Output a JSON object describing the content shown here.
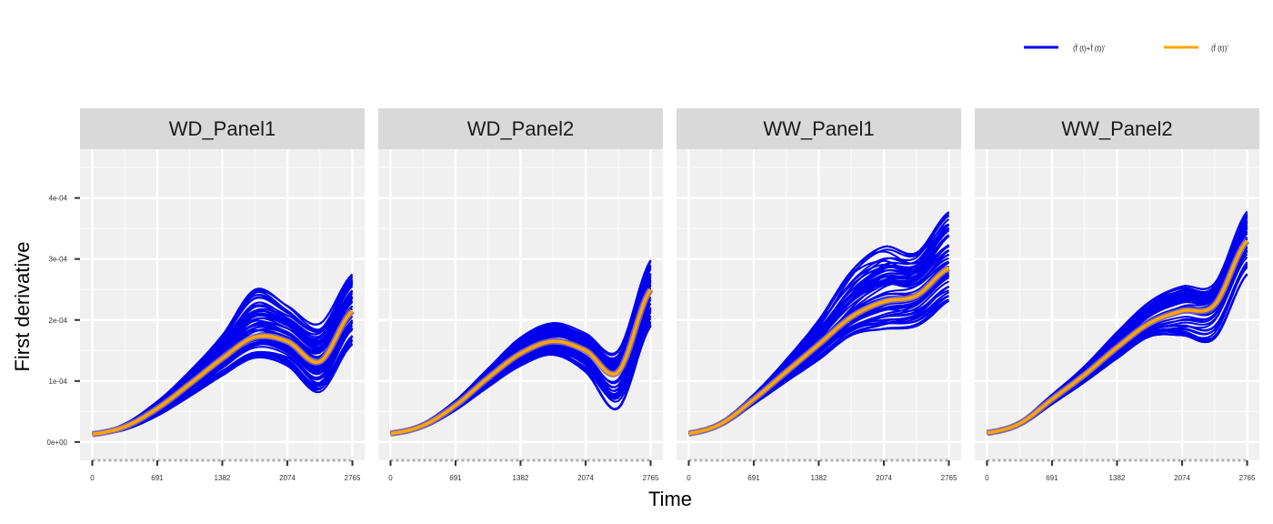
{
  "chart_data": {
    "type": "line",
    "xlabel": "Time",
    "ylabel": "First derivative",
    "x_ticks": [
      0,
      691,
      1382,
      2074,
      2765
    ],
    "x_tick_labels": [
      "0",
      "691",
      "1382",
      "2074",
      "2765"
    ],
    "y_ticks": [
      0,
      0.0001,
      0.0002,
      0.0003,
      0.0004
    ],
    "y_tick_labels": [
      "0e+00",
      "1e-04",
      "2e-04",
      "3e-04",
      "4e-04"
    ],
    "xlim": [
      -130,
      2895
    ],
    "ylim": [
      -3e-05,
      0.00048
    ],
    "grid": true,
    "legend_position": "top-right",
    "legend": [
      {
        "label": "(f̂  (t)+f̂  (t))'",
        "color": "#0000ee"
      },
      {
        "label": "(f̂  (t))'",
        "color": "#ffa500"
      }
    ],
    "colors": {
      "individual": "#0000ee",
      "mean": "#ffa500",
      "mean_outline": "#8b6fa8",
      "panel_bg": "#f0f0f0",
      "strip_bg": "#d9d9d9"
    },
    "panels": [
      {
        "name": "WD_Panel1",
        "mean": {
          "x": [
            0,
            345,
            691,
            1036,
            1382,
            1730,
            2074,
            2420,
            2765
          ],
          "y": [
            1.3e-05,
            2.5e-05,
            5.5e-05,
            9.5e-05,
            0.000137,
            0.000172,
            0.000165,
            0.000132,
            0.000215
          ]
        },
        "spread_low": [
          2e-06,
          5e-06,
          1.2e-05,
          2e-05,
          2.8e-05,
          3.4e-05,
          4e-05,
          5e-05,
          5.5e-05
        ],
        "spread_high": [
          2e-06,
          5e-06,
          1.2e-05,
          2.2e-05,
          3.8e-05,
          7.8e-05,
          5.8e-05,
          6.2e-05,
          6e-05
        ]
      },
      {
        "name": "WD_Panel2",
        "mean": {
          "x": [
            0,
            345,
            691,
            1036,
            1382,
            1730,
            2074,
            2420,
            2765
          ],
          "y": [
            1.4e-05,
            2.7e-05,
            6e-05,
            0.000105,
            0.000145,
            0.000165,
            0.00015,
            0.000115,
            0.00025
          ]
        },
        "spread_low": [
          2e-06,
          4e-06,
          8e-06,
          1.5e-05,
          2e-05,
          2.2e-05,
          3.5e-05,
          6e-05,
          6e-05
        ],
        "spread_high": [
          2e-06,
          4e-06,
          8e-06,
          1.5e-05,
          2.6e-05,
          3e-05,
          2.8e-05,
          3.5e-05,
          4.8e-05
        ]
      },
      {
        "name": "WW_Panel1",
        "mean": {
          "x": [
            0,
            345,
            691,
            1036,
            1382,
            1730,
            2074,
            2420,
            2765
          ],
          "y": [
            1.4e-05,
            3e-05,
            7e-05,
            0.000115,
            0.00016,
            0.000205,
            0.00023,
            0.00024,
            0.000285
          ]
        },
        "spread_low": [
          2e-06,
          4e-06,
          8e-06,
          1.6e-05,
          2.5e-05,
          3e-05,
          4.5e-05,
          5e-05,
          6e-05
        ],
        "spread_high": [
          2e-06,
          4e-06,
          8e-06,
          2e-05,
          4e-05,
          7.5e-05,
          9e-05,
          7e-05,
          9.2e-05
        ]
      },
      {
        "name": "WW_Panel2",
        "mean": {
          "x": [
            0,
            345,
            691,
            1036,
            1382,
            1730,
            2074,
            2420,
            2765
          ],
          "y": [
            1.5e-05,
            3e-05,
            7e-05,
            0.00011,
            0.000155,
            0.000195,
            0.000215,
            0.000225,
            0.00033
          ]
        },
        "spread_low": [
          2e-06,
          4e-06,
          8e-06,
          1.2e-05,
          1.8e-05,
          2.2e-05,
          4e-05,
          5.5e-05,
          5.5e-05
        ],
        "spread_high": [
          2e-06,
          4e-06,
          8e-06,
          1.4e-05,
          2.5e-05,
          3.5e-05,
          4e-05,
          3.5e-05,
          4.8e-05
        ]
      }
    ]
  }
}
